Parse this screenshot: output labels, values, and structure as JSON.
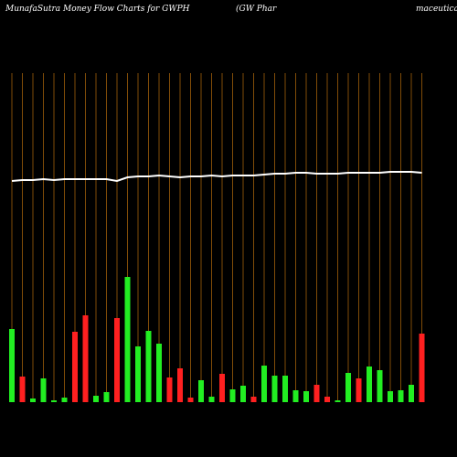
{
  "chart_data": {
    "type": "bar",
    "title": "MunafaSutra  Money Flow  Charts for GWPH",
    "subtitle": "(GW Phar",
    "subtitle_2": "maceutica",
    "categories": [
      null,
      null,
      null,
      null,
      null,
      null,
      null,
      null,
      null,
      null,
      null,
      null,
      null,
      null,
      null,
      null,
      null,
      null,
      null,
      null,
      null,
      null,
      null,
      null,
      null,
      null,
      null,
      null,
      null,
      null,
      null,
      null,
      null,
      null,
      null,
      null,
      null,
      null,
      null,
      null
    ],
    "series": [
      {
        "color": "bars",
        "colors": [
          "#22ee22",
          "#ff2020",
          "#22ee22",
          "#22ee22",
          "#22ee22",
          "#22ee22",
          "#ff2020",
          "#ff2020",
          "#22ee22",
          "#22ee22",
          "#ff2020",
          "#22ee22",
          "#22ee22",
          "#22ee22",
          "#22ee22",
          "#ff2020",
          "#ff2020",
          "#ff2020",
          "#22ee22",
          "#22ee22",
          "#ff2020",
          "#22ee22",
          "#22ee22",
          "#ff2020",
          "#22ee22",
          "#22ee22",
          "#22ee22",
          "#22ee22",
          "#22ee22",
          "#ff2020",
          "#ff2020",
          "#22ee22",
          "#22ee22",
          "#ff2020",
          "#22ee22",
          "#22ee22",
          "#22ee22",
          "#22ee22",
          "#22ee22",
          "#ff2020"
        ],
        "values": [
          80,
          28,
          4,
          26,
          2,
          5,
          77,
          95,
          7,
          11,
          92,
          137,
          61,
          78,
          64,
          27,
          37,
          5,
          24,
          6,
          31,
          14,
          18,
          6,
          40,
          29,
          29,
          13,
          12,
          19,
          6,
          2,
          32,
          26,
          39,
          35,
          12,
          13,
          19,
          75
        ]
      },
      {
        "type": "line",
        "color": "#ffffff",
        "values": [
          242,
          243,
          243,
          244,
          243,
          244,
          244,
          244,
          244,
          244,
          242,
          246,
          247,
          247,
          248,
          247,
          246,
          247,
          247,
          248,
          247,
          248,
          248,
          248,
          249,
          250,
          250,
          251,
          251,
          250,
          250,
          250,
          251,
          251,
          251,
          251,
          252,
          252,
          252,
          251
        ]
      }
    ],
    "ylim": [
      0,
      360
    ],
    "grid_color": "#a0600a"
  }
}
